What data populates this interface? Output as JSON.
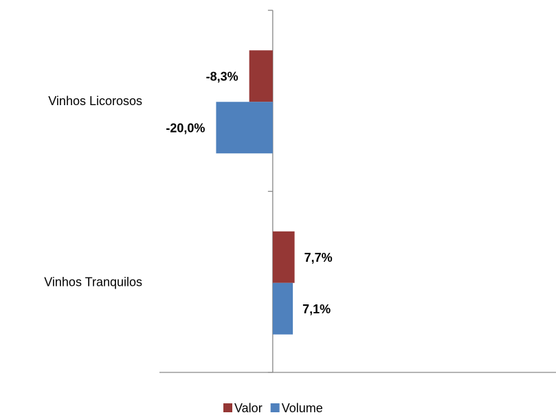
{
  "chart_data": {
    "type": "barh",
    "categories": [
      "Vinhos Licorosos",
      "Vinhos Tranquilos"
    ],
    "series": [
      {
        "name": "Valor",
        "color": "#953735",
        "values": [
          -8.3,
          7.7
        ],
        "value_labels": [
          "-8,3%",
          "7,7%"
        ]
      },
      {
        "name": "Volume",
        "color": "#4f81bd",
        "values": [
          -20.0,
          7.1
        ],
        "value_labels": [
          "-20,0%",
          "7,1%"
        ]
      }
    ],
    "xlim": [
      -40,
      100
    ],
    "legend": "bottom"
  }
}
